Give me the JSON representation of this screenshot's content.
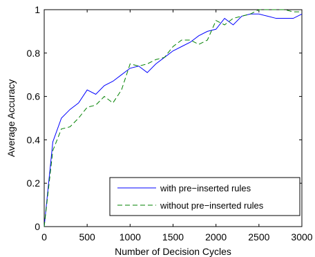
{
  "chart_data": {
    "type": "line",
    "xlabel": "Number of Decision Cycles",
    "ylabel": "Average Accuracy",
    "xlim": [
      0,
      3000
    ],
    "ylim": [
      0,
      1
    ],
    "xticks": [
      0,
      500,
      1000,
      1500,
      2000,
      2500,
      3000
    ],
    "yticks": [
      0,
      0.2,
      0.4,
      0.6,
      0.8,
      1
    ],
    "xtick_labels": [
      "0",
      "500",
      "1000",
      "1500",
      "2000",
      "2500",
      "3000"
    ],
    "ytick_labels": [
      "0",
      "0.2",
      "0.4",
      "0.6",
      "0.8",
      "1"
    ],
    "grid": false,
    "legend_position": "bottom-right",
    "series": [
      {
        "name": "with pre−inserted rules",
        "color": "#0000ff",
        "dash": "solid",
        "x": [
          0,
          100,
          200,
          300,
          400,
          500,
          600,
          700,
          800,
          900,
          1000,
          1100,
          1200,
          1300,
          1400,
          1500,
          1600,
          1700,
          1800,
          1900,
          2000,
          2100,
          2200,
          2300,
          2400,
          2500,
          2600,
          2700,
          2800,
          2900,
          3000
        ],
        "y": [
          0.0,
          0.39,
          0.5,
          0.54,
          0.57,
          0.63,
          0.61,
          0.65,
          0.67,
          0.7,
          0.73,
          0.74,
          0.71,
          0.75,
          0.78,
          0.81,
          0.83,
          0.85,
          0.88,
          0.9,
          0.91,
          0.96,
          0.93,
          0.97,
          0.98,
          0.98,
          0.97,
          0.96,
          0.96,
          0.96,
          0.98
        ]
      },
      {
        "name": "without pre−inserted rules",
        "color": "#008000",
        "dash": "dashed",
        "x": [
          0,
          100,
          200,
          300,
          400,
          500,
          600,
          700,
          800,
          900,
          1000,
          1100,
          1200,
          1300,
          1400,
          1500,
          1600,
          1700,
          1800,
          1900,
          2000,
          2100,
          2200,
          2300,
          2400,
          2500,
          2600,
          2700,
          2800,
          2900,
          3000
        ],
        "y": [
          0.0,
          0.35,
          0.45,
          0.46,
          0.5,
          0.55,
          0.56,
          0.6,
          0.57,
          0.63,
          0.75,
          0.74,
          0.75,
          0.77,
          0.78,
          0.83,
          0.86,
          0.86,
          0.84,
          0.86,
          0.95,
          0.93,
          0.96,
          0.97,
          0.98,
          1.0,
          1.0,
          1.0,
          1.0,
          0.99,
          0.99
        ]
      }
    ]
  }
}
